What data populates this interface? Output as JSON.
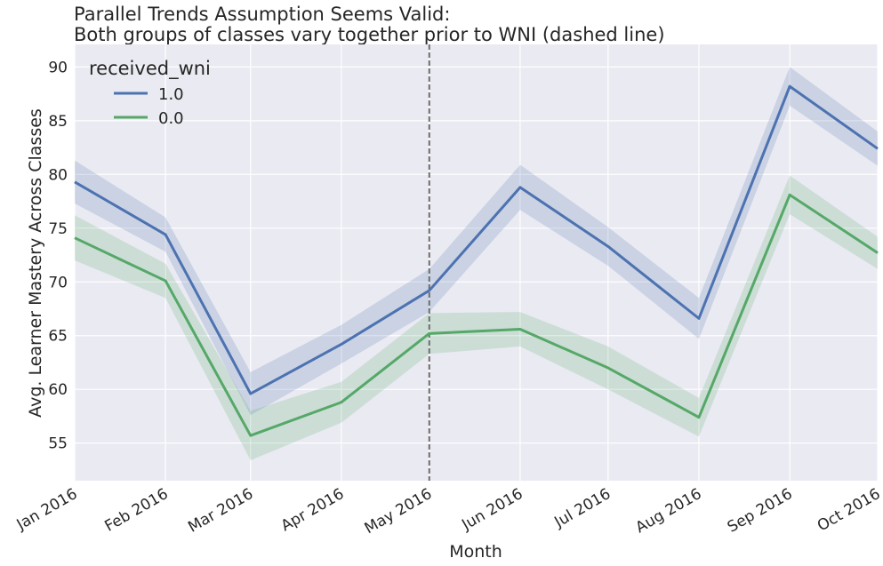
{
  "chart_data": {
    "type": "line",
    "title": "Parallel Trends Assumption Seems Valid:",
    "subtitle": "Both groups of classes vary together prior to WNI (dashed line)",
    "xlabel": "Month",
    "ylabel": "Avg. Learner Mastery Across Classes",
    "x": [
      "2016-01-01",
      "2016-02-01",
      "2016-03-01",
      "2016-04-01",
      "2016-05-01",
      "2016-06-01",
      "2016-07-01",
      "2016-08-01",
      "2016-09-01",
      "2016-10-01"
    ],
    "x_tick_labels": [
      "Jan 2016",
      "Feb 2016",
      "Mar 2016",
      "Apr 2016",
      "May 2016",
      "Jun 2016",
      "Jul 2016",
      "Aug 2016",
      "Sep 2016",
      "Oct 2016"
    ],
    "y_ticks": [
      55,
      60,
      65,
      70,
      75,
      80,
      85,
      90
    ],
    "ylim": [
      51.5,
      92.1
    ],
    "grid": true,
    "vline": {
      "x": "2016-05-01",
      "style": "dashed",
      "color": "#6e6e6e"
    },
    "legend": {
      "title": "received_wni",
      "placement": "top-left"
    },
    "series": [
      {
        "name": "1.0",
        "color": "#4c72b0",
        "values": [
          79.3,
          74.4,
          59.6,
          64.2,
          69.2,
          78.8,
          73.3,
          66.6,
          88.2,
          82.4
        ],
        "ci_lower": [
          77.3,
          72.8,
          57.6,
          62.4,
          67.2,
          76.7,
          71.5,
          64.7,
          86.4,
          80.8
        ],
        "ci_upper": [
          81.3,
          76.0,
          61.6,
          66.0,
          71.2,
          80.9,
          75.1,
          68.5,
          90.0,
          84.0
        ]
      },
      {
        "name": "0.0",
        "color": "#55a868",
        "values": [
          74.1,
          70.1,
          55.7,
          58.8,
          65.2,
          65.6,
          62.0,
          57.4,
          78.1,
          72.7
        ],
        "ci_lower": [
          72.0,
          68.5,
          53.4,
          56.9,
          63.3,
          64.0,
          60.0,
          55.6,
          76.3,
          71.2
        ],
        "ci_upper": [
          76.2,
          71.7,
          58.0,
          60.7,
          67.1,
          67.2,
          64.0,
          59.2,
          79.9,
          74.2
        ]
      }
    ]
  }
}
